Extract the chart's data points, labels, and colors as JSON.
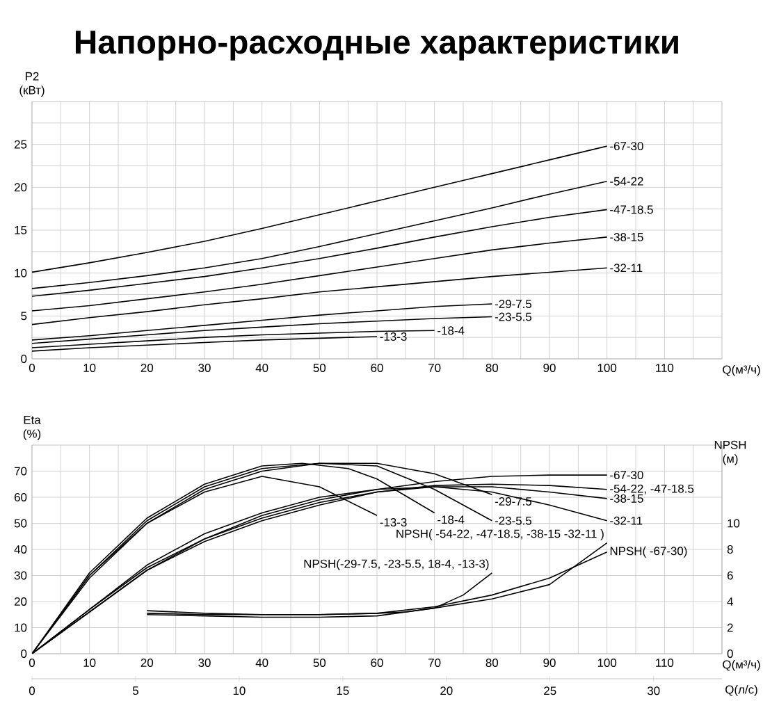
{
  "chart_data": [
    {
      "type": "line",
      "title": "Напорно-расходные характеристики",
      "xlabel": "Q(м³/ч)",
      "ylabel": "P2 (кВт)",
      "xlim": [
        0,
        120
      ],
      "ylim": [
        0,
        30
      ],
      "grid": true,
      "xticks": [
        0,
        {
          "value": 5,
          "label": null
        },
        10,
        {
          "value": 15,
          "label": null
        },
        20,
        {
          "value": 25,
          "label": null
        },
        30,
        {
          "value": 35,
          "label": null
        },
        40,
        {
          "value": 45,
          "label": null
        },
        50,
        {
          "value": 55,
          "label": null
        },
        60,
        {
          "value": 65,
          "label": null
        },
        70,
        {
          "value": 75,
          "label": null
        },
        80,
        {
          "value": 85,
          "label": null
        },
        90,
        {
          "value": 95,
          "label": null
        },
        100,
        {
          "value": 105,
          "label": null
        },
        110,
        {
          "value": 115,
          "label": null
        }
      ],
      "yticks": [
        0,
        {
          "value": 2.5,
          "label": null
        },
        5,
        {
          "value": 7.5,
          "label": null
        },
        10,
        {
          "value": 12.5,
          "label": null
        },
        15,
        {
          "value": 17.5,
          "label": null
        },
        20,
        {
          "value": 22.5,
          "label": null
        },
        25,
        {
          "value": 27.5,
          "label": null
        }
      ],
      "series": [
        {
          "name": "-67-30",
          "color": "#000000",
          "x": [
            0,
            10,
            20,
            30,
            40,
            50,
            60,
            70,
            80,
            90,
            100
          ],
          "values": [
            10.1,
            11.2,
            12.4,
            13.7,
            15.2,
            16.8,
            18.4,
            20.0,
            21.6,
            23.2,
            24.8
          ]
        },
        {
          "name": "-54-22",
          "color": "#000000",
          "x": [
            0,
            10,
            20,
            30,
            40,
            50,
            60,
            70,
            80,
            90,
            100
          ],
          "values": [
            8.2,
            8.9,
            9.7,
            10.6,
            11.7,
            13.1,
            14.6,
            16.1,
            17.6,
            19.2,
            20.7
          ]
        },
        {
          "name": "-47-18.5",
          "color": "#000000",
          "x": [
            0,
            10,
            20,
            30,
            40,
            50,
            60,
            70,
            80,
            90,
            100
          ],
          "values": [
            7.3,
            8.0,
            8.8,
            9.6,
            10.6,
            11.7,
            12.9,
            14.2,
            15.4,
            16.5,
            17.4
          ]
        },
        {
          "name": "-38-15",
          "color": "#000000",
          "x": [
            0,
            10,
            20,
            30,
            40,
            50,
            60,
            70,
            80,
            90,
            100
          ],
          "values": [
            5.6,
            6.2,
            7.0,
            7.8,
            8.7,
            9.7,
            10.7,
            11.7,
            12.7,
            13.5,
            14.2
          ]
        },
        {
          "name": "-32-11",
          "color": "#000000",
          "x": [
            0,
            10,
            20,
            30,
            40,
            50,
            60,
            70,
            80,
            90,
            100
          ],
          "values": [
            4.0,
            4.8,
            5.5,
            6.3,
            7.0,
            7.8,
            8.4,
            9.0,
            9.6,
            10.1,
            10.6
          ]
        },
        {
          "name": "-29-7.5",
          "color": "#000000",
          "x": [
            0,
            10,
            20,
            30,
            40,
            50,
            60,
            70,
            80
          ],
          "values": [
            2.2,
            2.7,
            3.3,
            3.9,
            4.5,
            5.1,
            5.6,
            6.1,
            6.4
          ]
        },
        {
          "name": "-23-5.5",
          "color": "#000000",
          "x": [
            0,
            10,
            20,
            30,
            40,
            50,
            60,
            70,
            80
          ],
          "values": [
            1.8,
            2.3,
            2.8,
            3.3,
            3.7,
            4.1,
            4.4,
            4.7,
            4.9
          ]
        },
        {
          "name": "-18-4",
          "color": "#000000",
          "x": [
            0,
            10,
            20,
            30,
            40,
            50,
            60,
            70
          ],
          "values": [
            1.3,
            1.7,
            2.1,
            2.5,
            2.8,
            3.0,
            3.2,
            3.3
          ]
        },
        {
          "name": "-13-3",
          "color": "#000000",
          "x": [
            0,
            10,
            20,
            30,
            40,
            50,
            60
          ],
          "values": [
            0.9,
            1.3,
            1.6,
            1.9,
            2.2,
            2.4,
            2.6
          ]
        }
      ]
    },
    {
      "type": "line",
      "xlabel": "Q(м³/ч)",
      "x2label": "Q(л/с)",
      "ylabel": "Eta (%)",
      "y2label": "NPSH (м)",
      "xlim": [
        0,
        120
      ],
      "ylim": [
        0,
        80
      ],
      "y2lim": [
        0,
        16
      ],
      "x2lim": [
        0,
        33.3
      ],
      "grid": true,
      "xticks": [
        0,
        {
          "value": 5,
          "label": null
        },
        10,
        {
          "value": 15,
          "label": null
        },
        20,
        {
          "value": 25,
          "label": null
        },
        30,
        {
          "value": 35,
          "label": null
        },
        40,
        {
          "value": 45,
          "label": null
        },
        50,
        {
          "value": 55,
          "label": null
        },
        60,
        {
          "value": 65,
          "label": null
        },
        70,
        {
          "value": 75,
          "label": null
        },
        80,
        {
          "value": 85,
          "label": null
        },
        90,
        {
          "value": 95,
          "label": null
        },
        100,
        {
          "value": 105,
          "label": null
        },
        110,
        {
          "value": 115,
          "label": null
        }
      ],
      "yticks": [
        0,
        10,
        20,
        30,
        40,
        50,
        60,
        70
      ],
      "y2ticks": [
        0,
        2,
        4,
        6,
        8,
        10
      ],
      "x2ticks": [
        0,
        5,
        10,
        15,
        20,
        25,
        30
      ],
      "series": [
        {
          "name": "-67-30",
          "color": "#000000",
          "x": [
            0,
            10,
            20,
            30,
            40,
            50,
            60,
            70,
            80,
            90,
            100
          ],
          "values": [
            0,
            17,
            33,
            44,
            53,
            59,
            63,
            66,
            68,
            68.5,
            68.5
          ]
        },
        {
          "name": "-54-22, -47-18.5",
          "color": "#000000",
          "x": [
            0,
            10,
            20,
            30,
            40,
            50,
            60,
            70,
            80,
            90,
            100
          ],
          "values": [
            0,
            16,
            32,
            43,
            51,
            57,
            62,
            64.5,
            65,
            64.5,
            63
          ]
        },
        {
          "name": "-38-15",
          "color": "#000000",
          "x": [
            0,
            10,
            20,
            30,
            40,
            50,
            60,
            70,
            80,
            90,
            100
          ],
          "values": [
            0,
            16,
            32,
            44,
            52,
            58,
            62,
            64,
            64,
            62,
            59.5
          ]
        },
        {
          "name": "-32-11",
          "color": "#000000",
          "x": [
            0,
            10,
            20,
            30,
            40,
            50,
            60,
            70,
            80,
            90,
            100
          ],
          "values": [
            0,
            17,
            34,
            46,
            54,
            60,
            63,
            64,
            62,
            57,
            51
          ]
        },
        {
          "name": "-29-7.5",
          "color": "#000000",
          "x": [
            0,
            10,
            20,
            30,
            40,
            50,
            60,
            70,
            80
          ],
          "values": [
            0,
            29,
            50,
            63,
            70,
            73,
            73,
            69,
            61
          ]
        },
        {
          "name": "-23-5.5",
          "color": "#000000",
          "x": [
            0,
            10,
            20,
            30,
            40,
            50,
            60,
            70,
            80
          ],
          "values": [
            0,
            30,
            51,
            64,
            71,
            73,
            72,
            63,
            51
          ]
        },
        {
          "name": "-18-4",
          "color": "#000000",
          "x": [
            0,
            10,
            20,
            30,
            40,
            47,
            55,
            60,
            70
          ],
          "values": [
            0,
            31,
            52,
            65,
            72,
            73,
            71,
            67,
            54
          ]
        },
        {
          "name": "-13-3",
          "color": "#000000",
          "x": [
            0,
            10,
            20,
            30,
            40,
            50,
            60
          ],
          "values": [
            0,
            30,
            50,
            62,
            68,
            64,
            53
          ]
        },
        {
          "name": "NPSH(-29-7.5, -23-5.5, 18-4, -13-3)",
          "color": "#000000",
          "axis": "y2",
          "x": [
            20,
            30,
            40,
            50,
            60,
            65,
            70,
            75,
            80
          ],
          "values": [
            3.3,
            3.1,
            3.0,
            3.0,
            3.1,
            3.2,
            3.5,
            4.5,
            6.2
          ]
        },
        {
          "name": "NPSH( -54-22, -47-18.5, -38-15 -32-11 )",
          "color": "#000000",
          "axis": "y2",
          "x": [
            20,
            30,
            40,
            50,
            60,
            70,
            80,
            90,
            100
          ],
          "values": [
            3.0,
            2.9,
            2.8,
            2.8,
            2.9,
            3.5,
            4.2,
            5.3,
            8.5
          ]
        },
        {
          "name": "NPSH( -67-30)",
          "color": "#000000",
          "axis": "y2",
          "x": [
            20,
            30,
            40,
            50,
            60,
            70,
            80,
            90,
            100
          ],
          "values": [
            3.1,
            3.0,
            3.0,
            3.0,
            3.1,
            3.6,
            4.5,
            5.8,
            7.8
          ]
        }
      ]
    }
  ]
}
